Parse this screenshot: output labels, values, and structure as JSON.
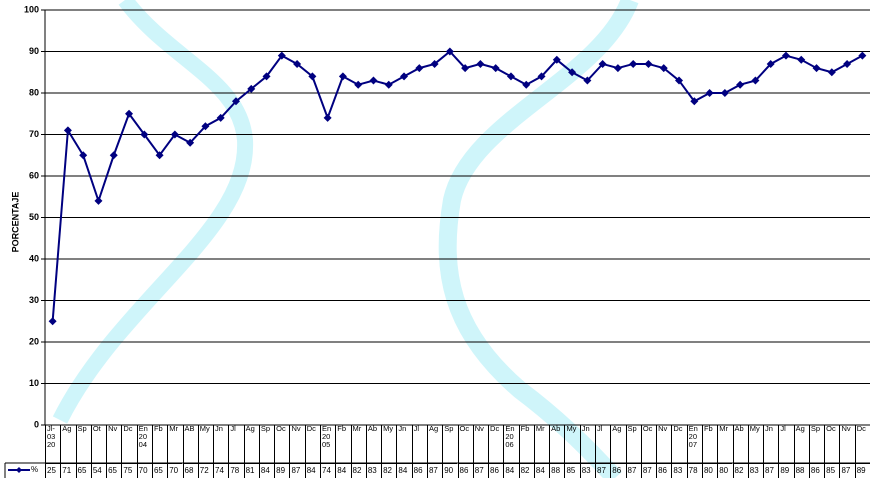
{
  "chart_data": {
    "type": "line",
    "ylabel": "PORCENTAJE",
    "categories": [
      "Jl-\n03\n20",
      "Ag",
      "Sp",
      "Ot",
      "Nv",
      "Dc",
      "En\n20\n04",
      "Fb",
      "Mr",
      "AB",
      "My",
      "Jn",
      "Jl",
      "Ag",
      "Sp",
      "Oc",
      "Nv",
      "Dc",
      "En\n20\n05",
      "Fb",
      "Mr",
      "Ab",
      "My",
      "Jn",
      "Jl",
      "Ag",
      "Sp",
      "Oc",
      "Nv",
      "Dc",
      "En\n20\n06",
      "Fb",
      "Mr",
      "Ab",
      "My",
      "Jn",
      "Jl",
      "Ag",
      "Sp",
      "Oc",
      "Nv",
      "Dc",
      "En\n20\n07",
      "Fb",
      "Mr",
      "Ab",
      "My",
      "Jn",
      "Jl",
      "Ag",
      "Sp",
      "Oc",
      "Nv",
      "Dc"
    ],
    "series": [
      {
        "name": "%",
        "color": "#000080",
        "values": [
          25,
          71,
          65,
          54,
          65,
          75,
          70,
          65,
          70,
          68,
          72,
          74,
          78,
          81,
          84,
          89,
          87,
          84,
          74,
          84,
          82,
          83,
          82,
          84,
          86,
          87,
          90,
          86,
          87,
          86,
          84,
          82,
          84,
          88,
          85,
          83,
          87,
          86,
          87,
          87,
          86,
          83,
          78,
          80,
          80,
          82,
          83,
          87,
          89,
          88,
          86,
          85,
          87,
          89
        ]
      }
    ],
    "ylim": [
      0,
      100
    ],
    "yticks": [
      0,
      10,
      20,
      30,
      40,
      50,
      60,
      70,
      80,
      90,
      100
    ],
    "grid": true
  }
}
